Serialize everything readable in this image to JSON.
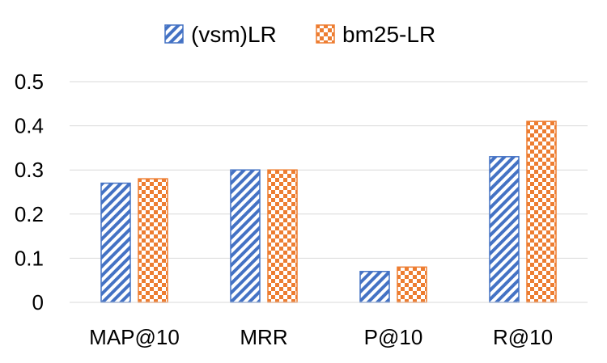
{
  "chart_data": {
    "type": "bar",
    "categories": [
      "MAP@10",
      "MRR",
      "P@10",
      "R@10"
    ],
    "series": [
      {
        "name": "(vsm)LR",
        "values": [
          0.27,
          0.3,
          0.07,
          0.33
        ],
        "color": "#4472C4",
        "pattern": "diagonal-stripes"
      },
      {
        "name": "bm25-LR",
        "values": [
          0.28,
          0.3,
          0.08,
          0.41
        ],
        "color": "#ED7D31",
        "pattern": "checkerboard"
      }
    ],
    "ylim": [
      0,
      0.5
    ],
    "yticks": [
      "0",
      "0.1",
      "0.2",
      "0.3",
      "0.4",
      "0.5"
    ],
    "grid": true,
    "legend_position": "top-center"
  }
}
